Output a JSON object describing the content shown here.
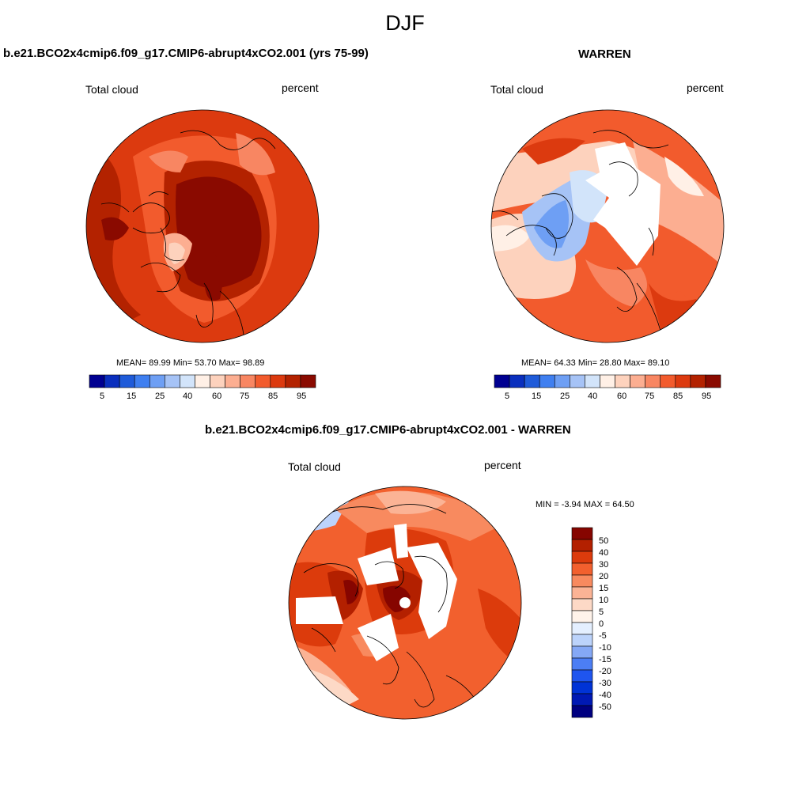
{
  "page_title": "DJF",
  "colors": {
    "left_scale": [
      "#000091",
      "#0a2fbe",
      "#1f5bd9",
      "#3f7ff0",
      "#6e9ff4",
      "#a6c3f6",
      "#d2e4fa",
      "#fff0e6",
      "#fdd2bd",
      "#fcae91",
      "#f88662",
      "#f25b2d",
      "#dc3a0f",
      "#b32200",
      "#8a0a00"
    ],
    "diff_scale": [
      "#000080",
      "#0019b4",
      "#0033d6",
      "#1f55ef",
      "#4c7ef4",
      "#85a8f5",
      "#bcd3fb",
      "#e4efff",
      "#fff3ea",
      "#fdd9c6",
      "#fbb395",
      "#f88a5f",
      "#f2602e",
      "#dc3b0c",
      "#b32000",
      "#860500"
    ]
  },
  "panel_left": {
    "title": "b.e21.BCO2x4cmip6.f09_g17.CMIP6-abrupt4xCO2.001 (yrs 75-99)",
    "variable": "Total cloud",
    "units": "percent",
    "stats": "MEAN=  89.99  Min=  53.70  Max=  98.89",
    "colorbar_labels": [
      "5",
      "15",
      "25",
      "40",
      "60",
      "75",
      "85",
      "95"
    ]
  },
  "panel_right": {
    "title": "WARREN",
    "variable": "Total cloud",
    "units": "percent",
    "stats": "MEAN=  64.33  Min=  28.80  Max=  89.10",
    "colorbar_labels": [
      "5",
      "15",
      "25",
      "40",
      "60",
      "75",
      "85",
      "95"
    ]
  },
  "panel_diff": {
    "title": "b.e21.BCO2x4cmip6.f09_g17.CMIP6-abrupt4xCO2.001 - WARREN",
    "variable": "Total cloud",
    "units": "percent",
    "stats": "MIN =  -3.94 MAX =  64.50",
    "colorbar_labels": [
      "50",
      "40",
      "30",
      "20",
      "15",
      "10",
      "5",
      "0",
      "-5",
      "-10",
      "-15",
      "-20",
      "-30",
      "-40",
      "-50"
    ]
  }
}
